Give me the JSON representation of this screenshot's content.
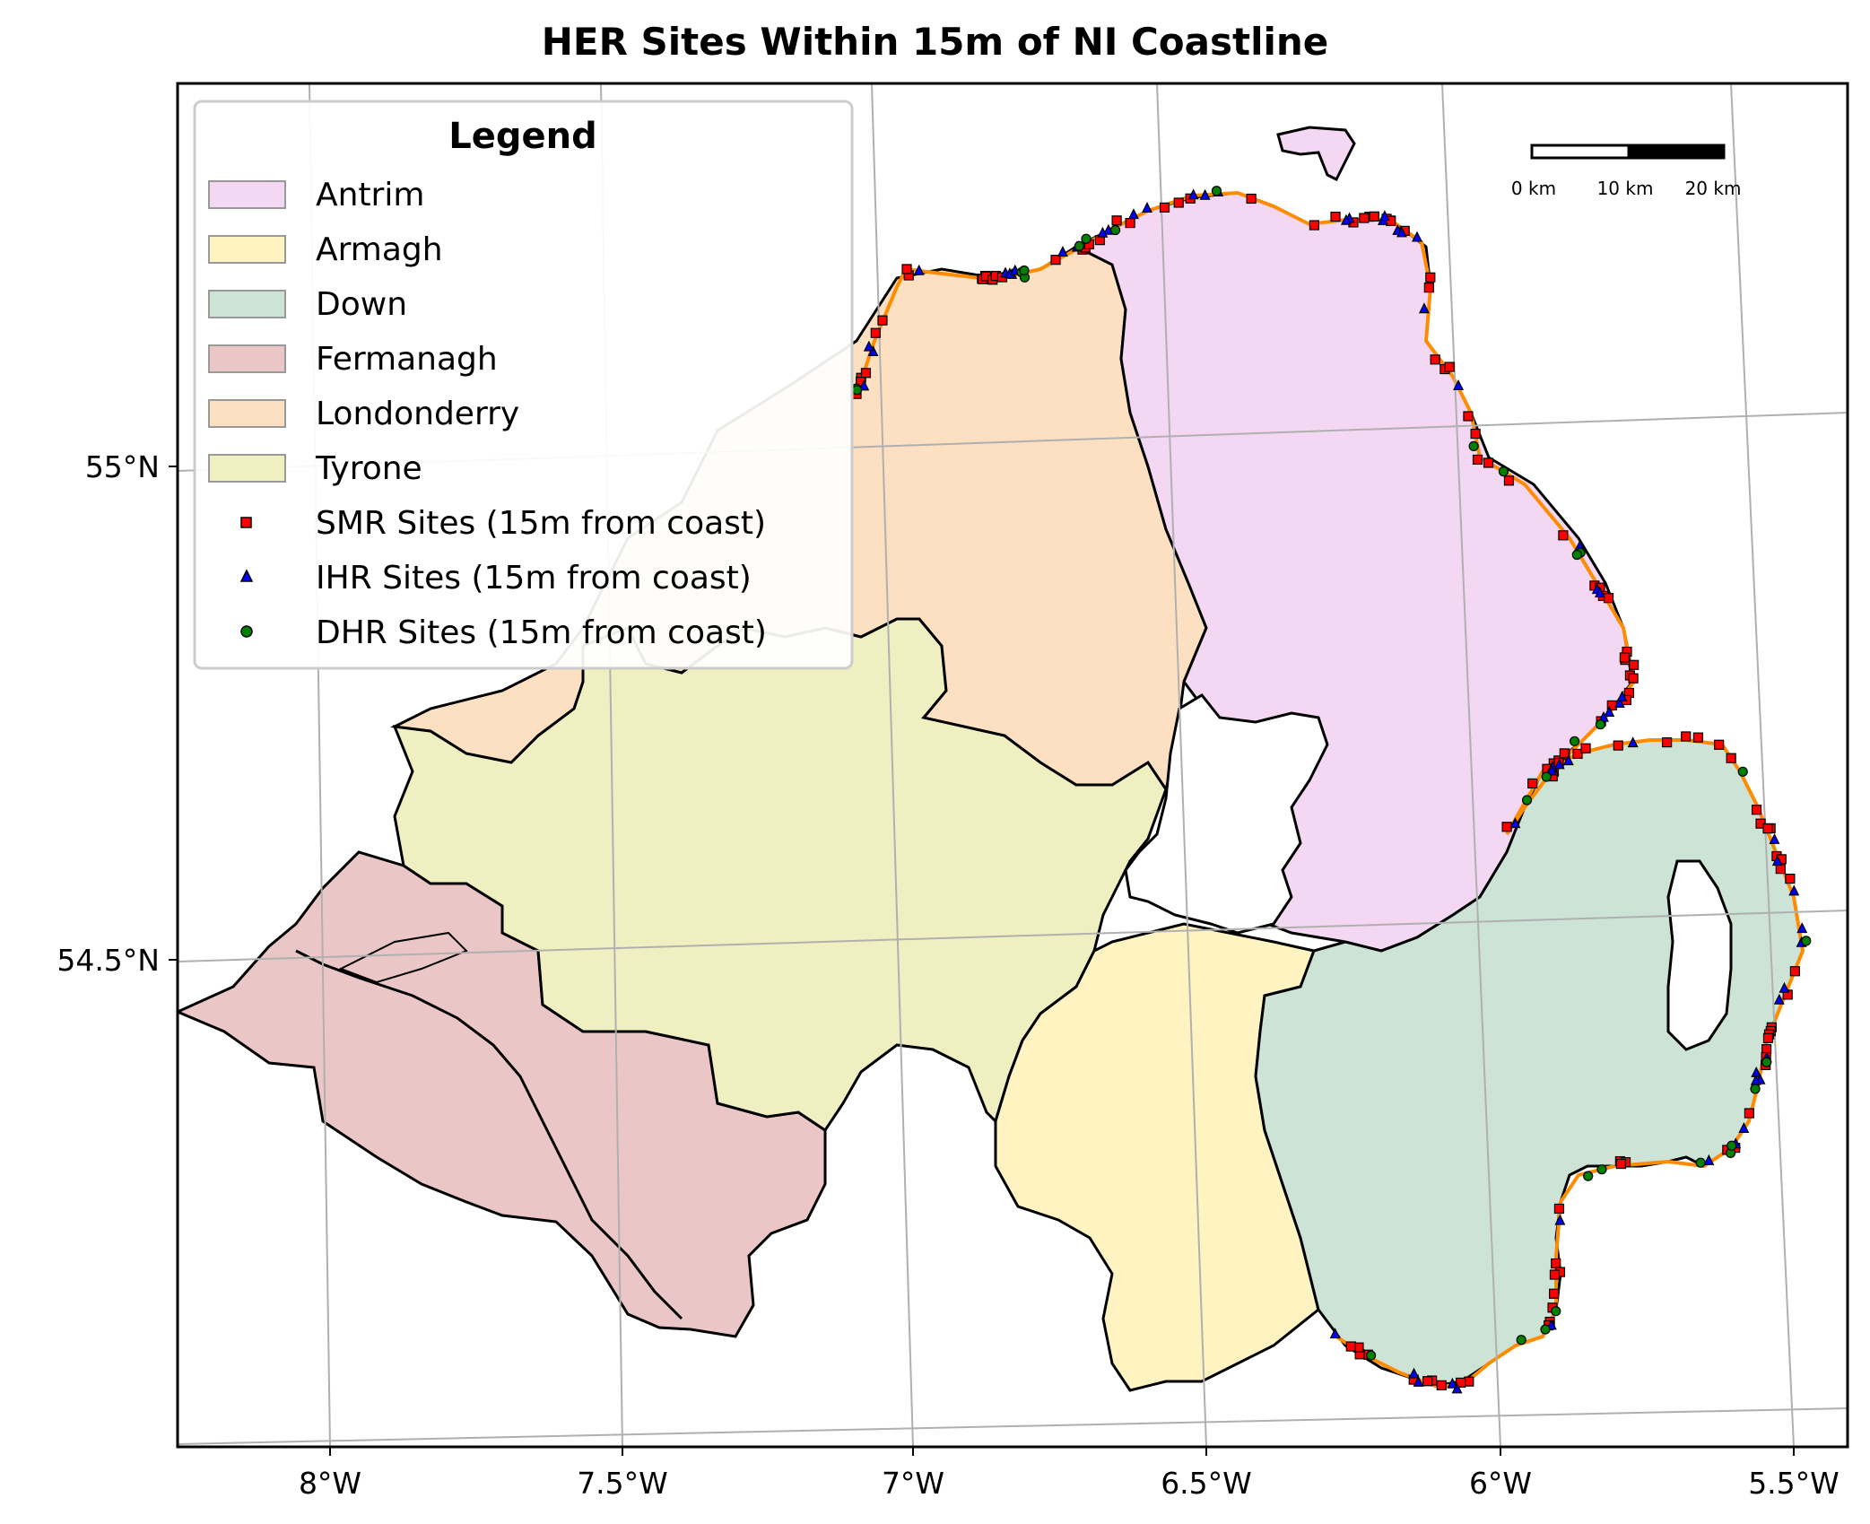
{
  "title": "HER Sites Within 15m of NI Coastline",
  "colors": {
    "antrim": "#f3d7f3",
    "armagh": "#fff3c2",
    "down": "#cde3d6",
    "fermanagh": "#ebc6c7",
    "londonderry": "#fde0c2",
    "tyrone": "#efefc2",
    "coastline": "#ff8c00",
    "smr": "#ff0000",
    "ihr": "#0000ff",
    "dhr": "#008000",
    "grid": "#b0b0b0"
  },
  "legend": {
    "title": "Legend",
    "entries": [
      {
        "label": "Antrim",
        "kind": "patch",
        "color": "#f3d7f3"
      },
      {
        "label": "Armagh",
        "kind": "patch",
        "color": "#fff3c2"
      },
      {
        "label": "Down",
        "kind": "patch",
        "color": "#cde3d6"
      },
      {
        "label": "Fermanagh",
        "kind": "patch",
        "color": "#ebc6c7"
      },
      {
        "label": "Londonderry",
        "kind": "patch",
        "color": "#fde0c2"
      },
      {
        "label": "Tyrone",
        "kind": "patch",
        "color": "#efefc2"
      },
      {
        "label": "SMR Sites (15m from coast)",
        "kind": "square",
        "color": "#ff0000"
      },
      {
        "label": "IHR Sites (15m from coast)",
        "kind": "triangle",
        "color": "#0000ff"
      },
      {
        "label": "DHR Sites (15m from coast)",
        "kind": "circle",
        "color": "#008000"
      }
    ]
  },
  "axes": {
    "x_ticks": [
      "8°W",
      "7.5°W",
      "7°W",
      "6.5°W",
      "6°W",
      "5.5°W"
    ],
    "y_ticks": [
      "55°N",
      "54.5°N"
    ]
  },
  "scale_bar": {
    "labels": [
      "0 km",
      "10 km",
      "20 km"
    ]
  }
}
